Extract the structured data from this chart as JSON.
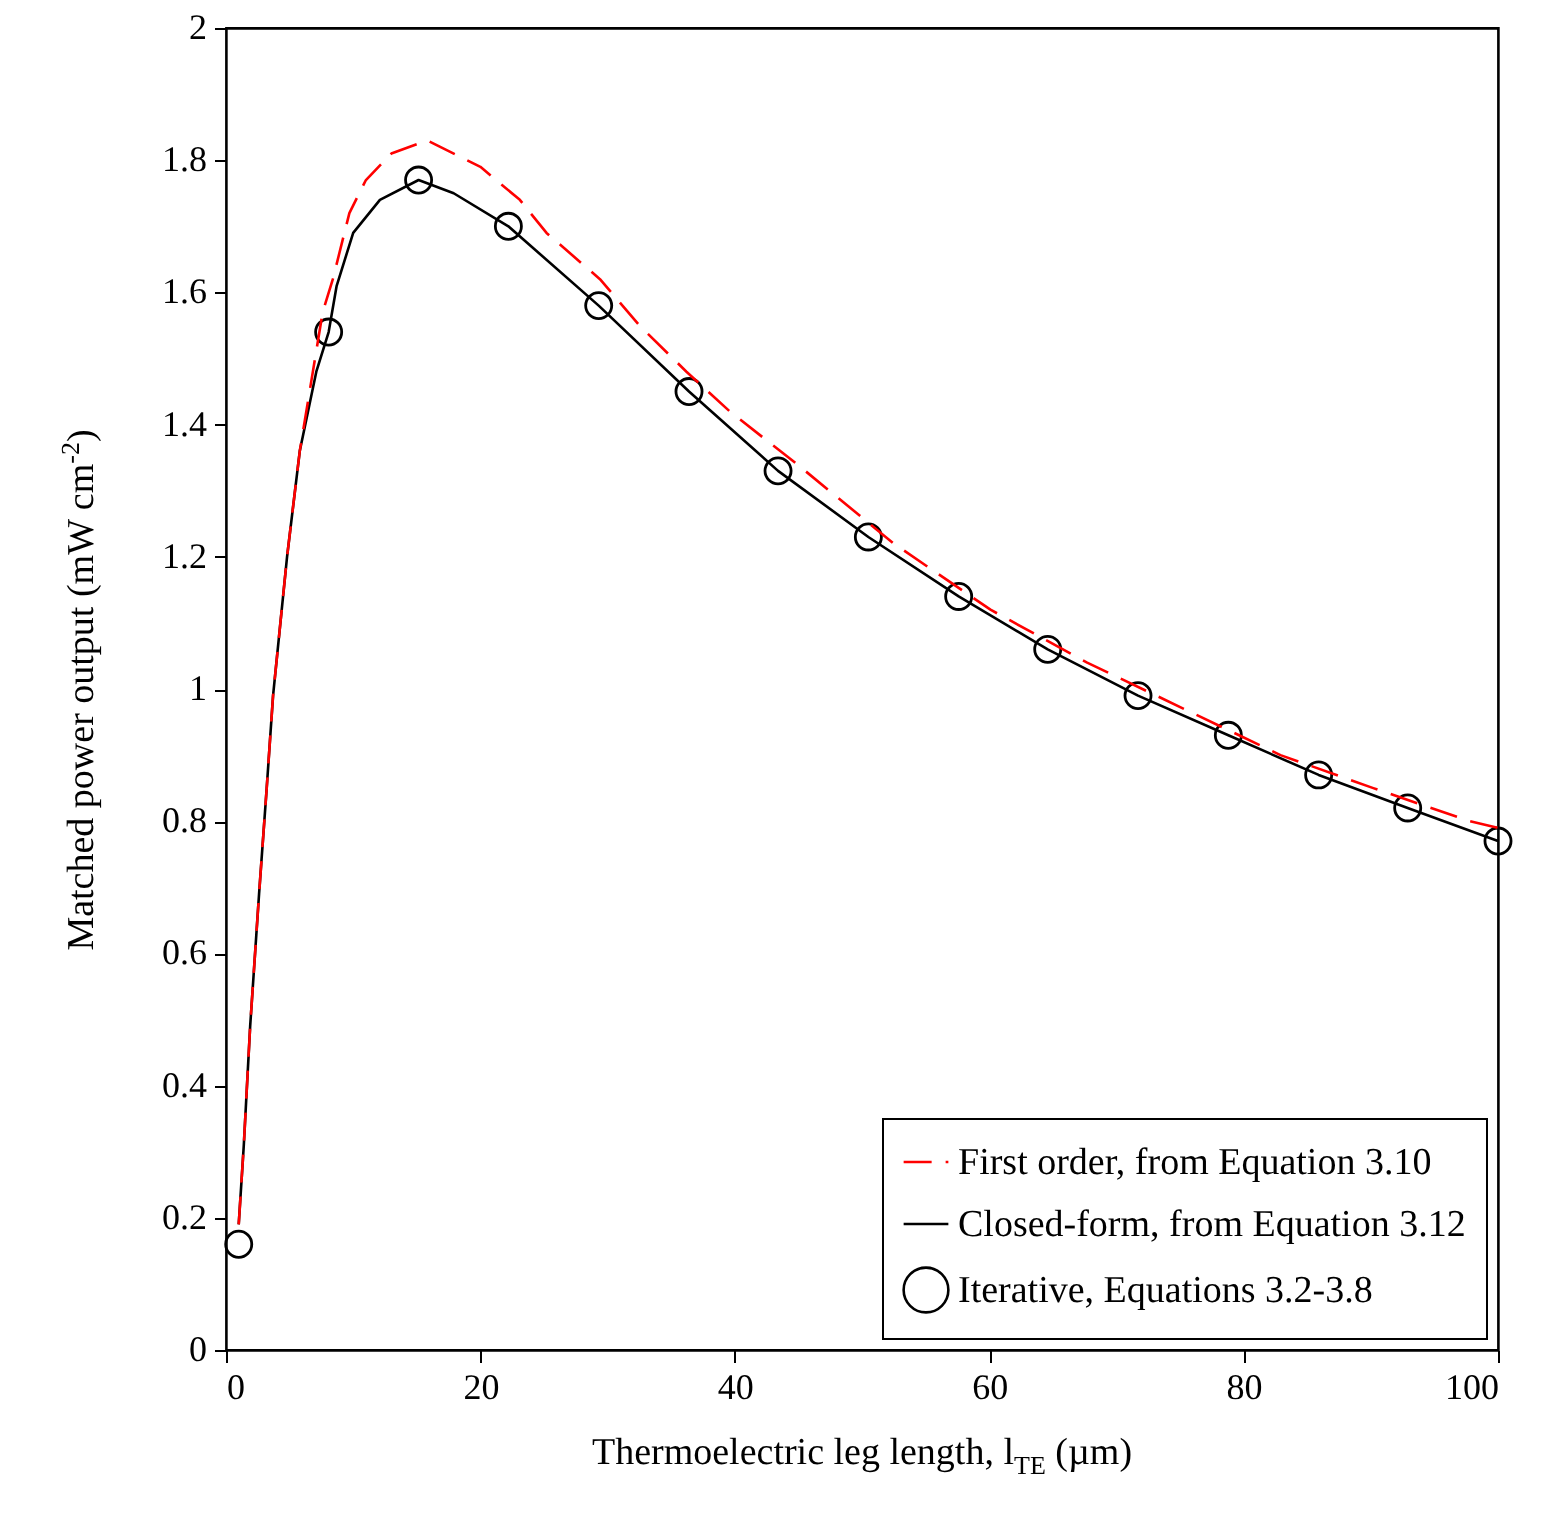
{
  "chart_data": {
    "type": "line",
    "xlabel": "Thermoelectric leg length, l$_{TE}$ (µm)",
    "ylabel": "Matched power output (mW cm$^{-2}$)",
    "xlim": [
      0,
      100
    ],
    "xticks": [
      0,
      20,
      40,
      60,
      80,
      100
    ],
    "ylim": [
      0,
      2
    ],
    "yticks": [
      0,
      0.2,
      0.4,
      0.6,
      0.8,
      1,
      1.2,
      1.4,
      1.6,
      1.8,
      2
    ],
    "grid": false,
    "legend": "bottom right",
    "series": [
      {
        "name": "First order, from Equation 3.10",
        "line_style": "dashed",
        "color": "#ff0000",
        "x": [
          1,
          1.4,
          1.9,
          2.6,
          3.2,
          3.7,
          4.8,
          5.8,
          7.6,
          8.4,
          9.7,
          11,
          13,
          15.8,
          20,
          23.1,
          25.2,
          29.4,
          32.5,
          36.2,
          39.6,
          44.9,
          52.5,
          60.1,
          67.7,
          75.3,
          82.9,
          90.2,
          97.8,
          100
        ],
        "values": [
          0.19,
          0.31,
          0.49,
          0.69,
          0.85,
          0.99,
          1.2,
          1.36,
          1.57,
          1.62,
          1.72,
          1.77,
          1.81,
          1.83,
          1.79,
          1.74,
          1.69,
          1.62,
          1.55,
          1.48,
          1.42,
          1.34,
          1.22,
          1.12,
          1.04,
          0.97,
          0.9,
          0.85,
          0.8,
          0.79
        ]
      },
      {
        "name": "Closed-form, from Equation 3.12",
        "line_style": "solid",
        "color": "#000000",
        "x": [
          1,
          1.4,
          1.9,
          2.6,
          3.2,
          3.7,
          4.8,
          5.8,
          7.1,
          8.07,
          8.7,
          10,
          12.1,
          15.14,
          17.9,
          22.2,
          29.3,
          36.4,
          43.4,
          50.5,
          57.6,
          64.6,
          71.7,
          78.8,
          85.9,
          92.9,
          100
        ],
        "values": [
          0.19,
          0.31,
          0.49,
          0.69,
          0.85,
          0.99,
          1.2,
          1.36,
          1.48,
          1.54,
          1.61,
          1.69,
          1.74,
          1.77,
          1.75,
          1.7,
          1.58,
          1.45,
          1.33,
          1.23,
          1.14,
          1.06,
          0.99,
          0.93,
          0.87,
          0.82,
          0.77
        ]
      },
      {
        "name": "Iterative, Equations 3.2-3.8",
        "type": "scatter",
        "marker": "circle",
        "color": "#000000",
        "x": [
          1,
          8.07,
          15.14,
          22.2,
          29.3,
          36.4,
          43.4,
          50.5,
          57.6,
          64.6,
          71.7,
          78.8,
          85.9,
          92.9,
          100
        ],
        "values": [
          0.16,
          1.54,
          1.77,
          1.7,
          1.58,
          1.45,
          1.33,
          1.23,
          1.14,
          1.06,
          0.99,
          0.93,
          0.87,
          0.82,
          0.77
        ]
      }
    ]
  }
}
